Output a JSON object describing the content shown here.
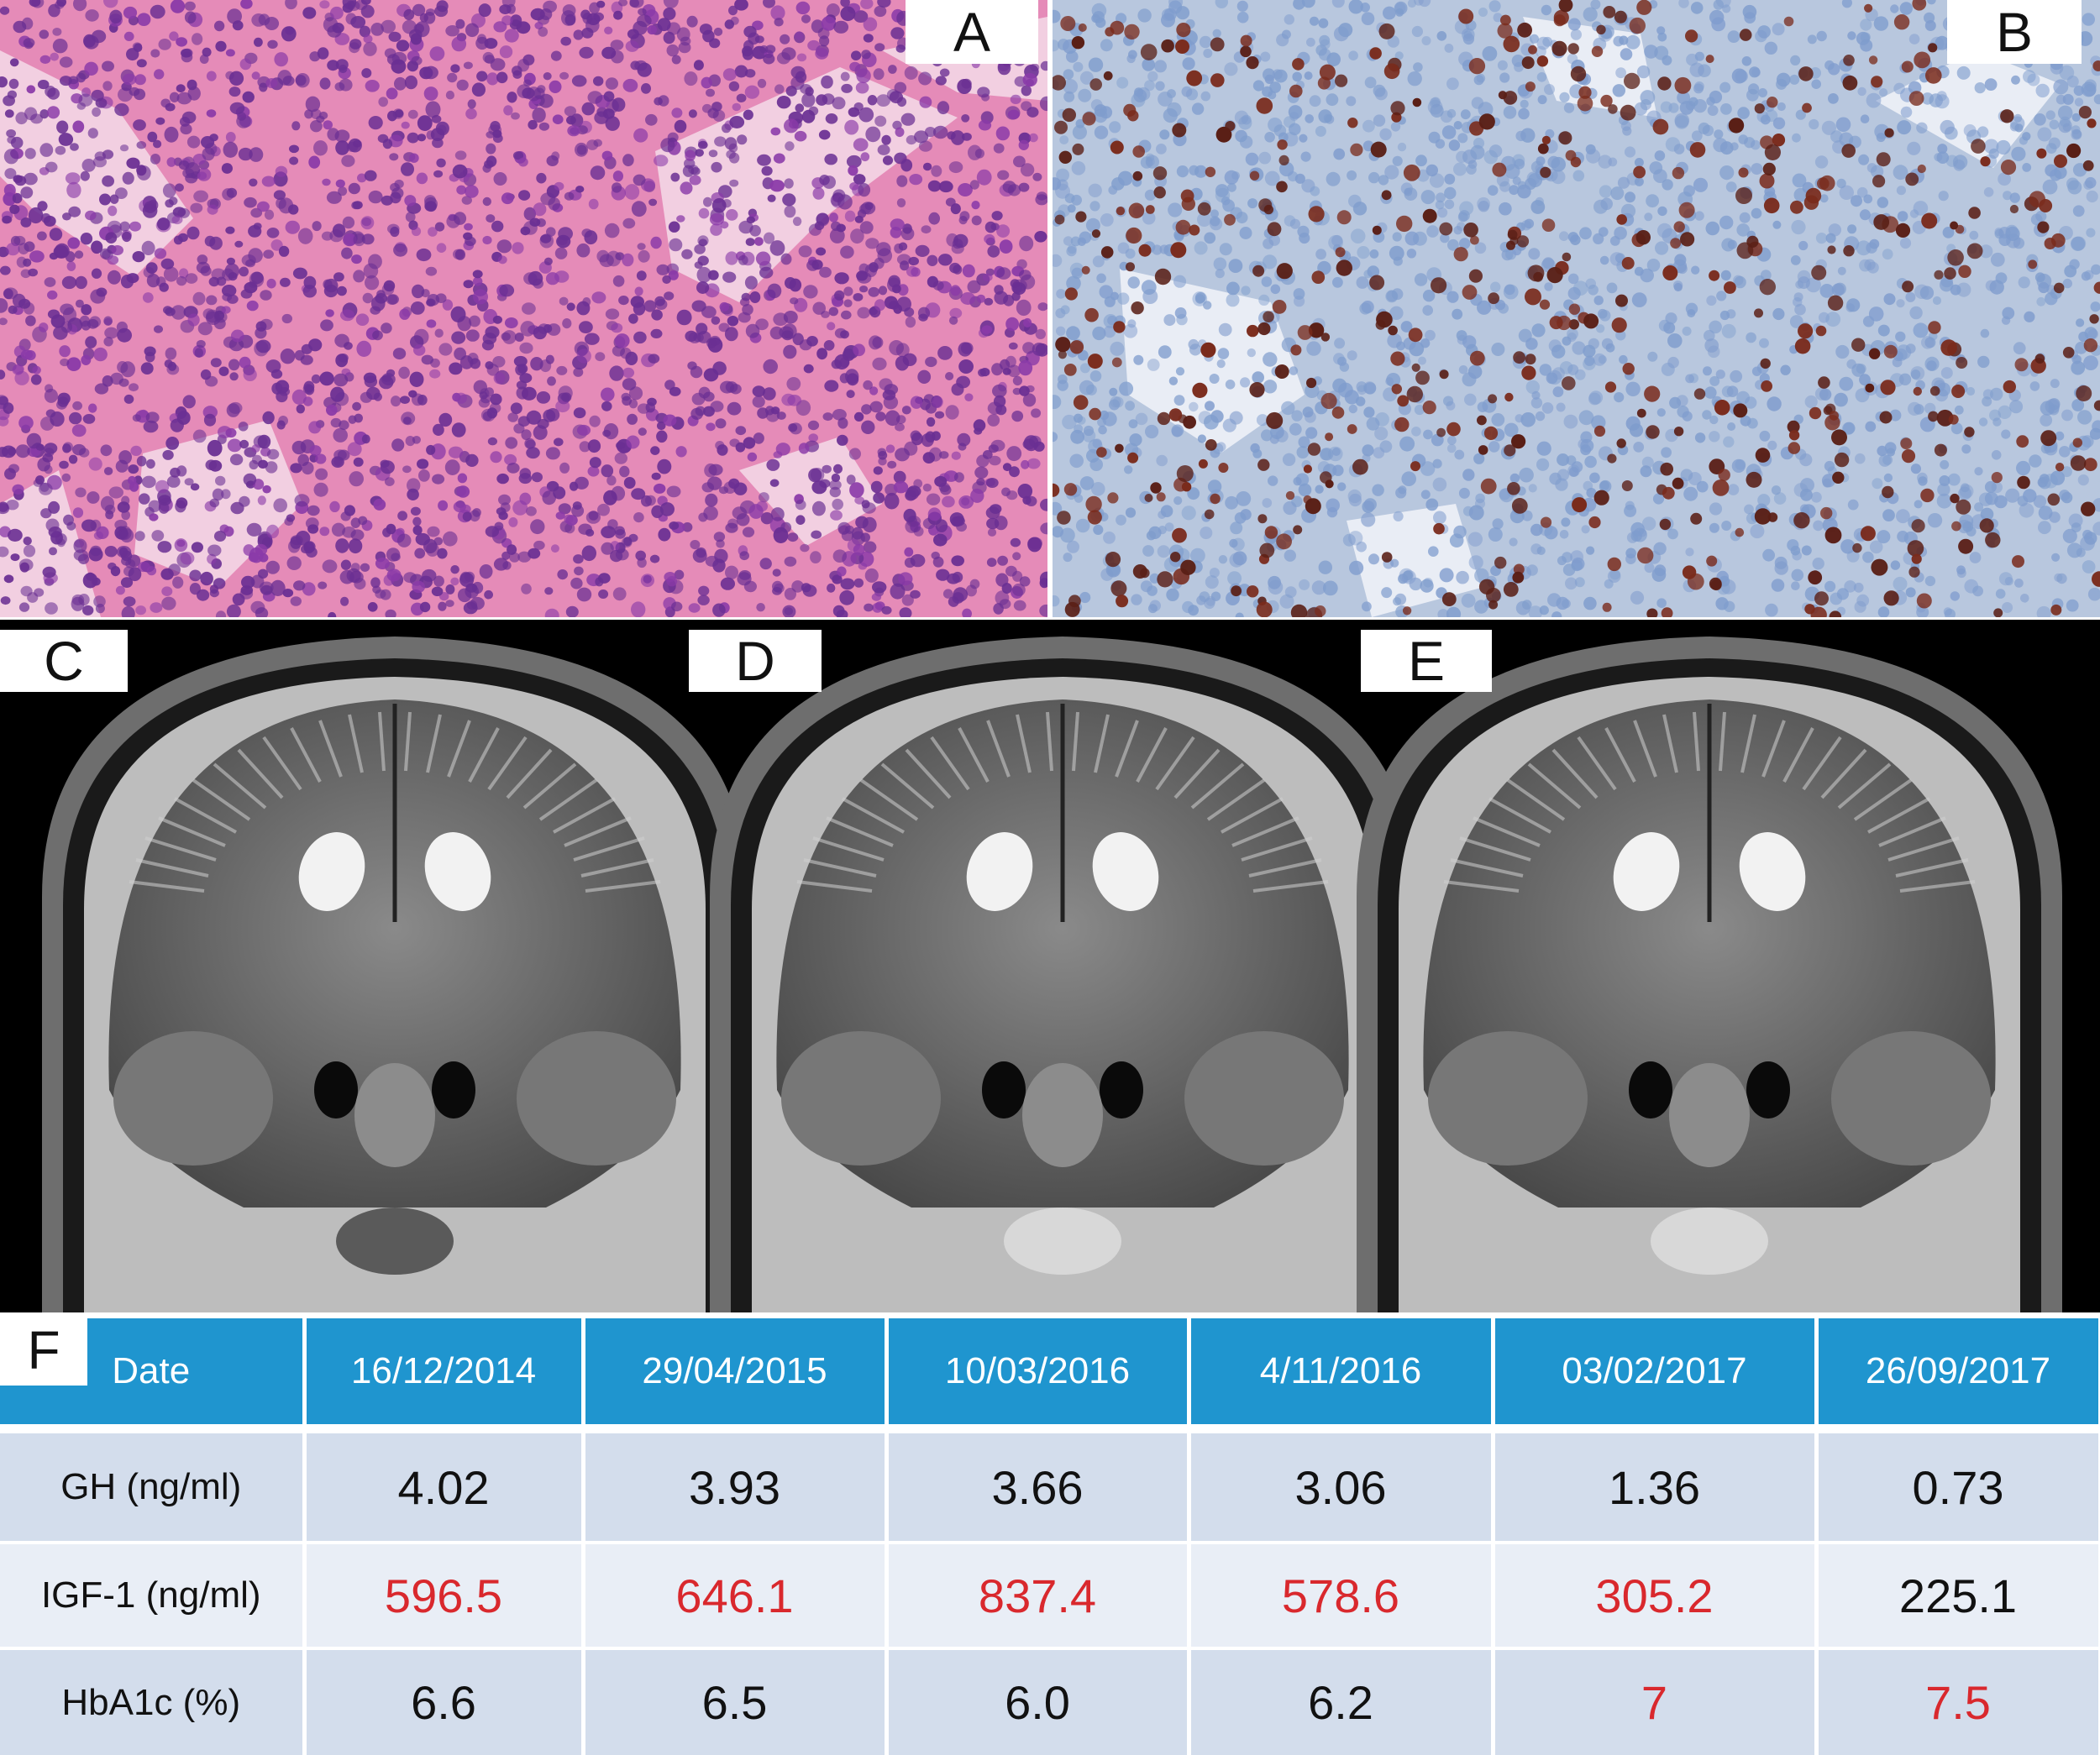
{
  "panels": {
    "a": {
      "label": "A"
    },
    "b": {
      "label": "B"
    },
    "c": {
      "label": "C"
    },
    "d": {
      "label": "D"
    },
    "e": {
      "label": "E"
    },
    "f": {
      "label": "F"
    }
  },
  "colors": {
    "header_bg": "#1f95cf",
    "row_dark": "#d3ddec",
    "row_light": "#e9eef6",
    "highlight_red": "#d9282d",
    "he_stain_bg": "#e58bb8",
    "ihc_bg": "#b8c7de"
  },
  "table": {
    "header": [
      "Date",
      "16/12/2014",
      "29/04/2015",
      "10/03/2016",
      "4/11/2016",
      "03/02/2017",
      "26/09/2017"
    ],
    "rows": [
      {
        "label": "GH (ng/ml)",
        "values": [
          "4.02",
          "3.93",
          "3.66",
          "3.06",
          "1.36",
          "0.73"
        ],
        "red": [
          false,
          false,
          false,
          false,
          false,
          false
        ]
      },
      {
        "label": "IGF-1 (ng/ml)",
        "values": [
          "596.5",
          "646.1",
          "837.4",
          "578.6",
          "305.2",
          "225.1"
        ],
        "red": [
          true,
          true,
          true,
          true,
          true,
          false
        ]
      },
      {
        "label": "HbA1c (%)",
        "values": [
          "6.6",
          "6.5",
          "6.0",
          "6.2",
          "7",
          "7.5"
        ],
        "red": [
          false,
          false,
          false,
          false,
          true,
          true
        ]
      }
    ]
  }
}
